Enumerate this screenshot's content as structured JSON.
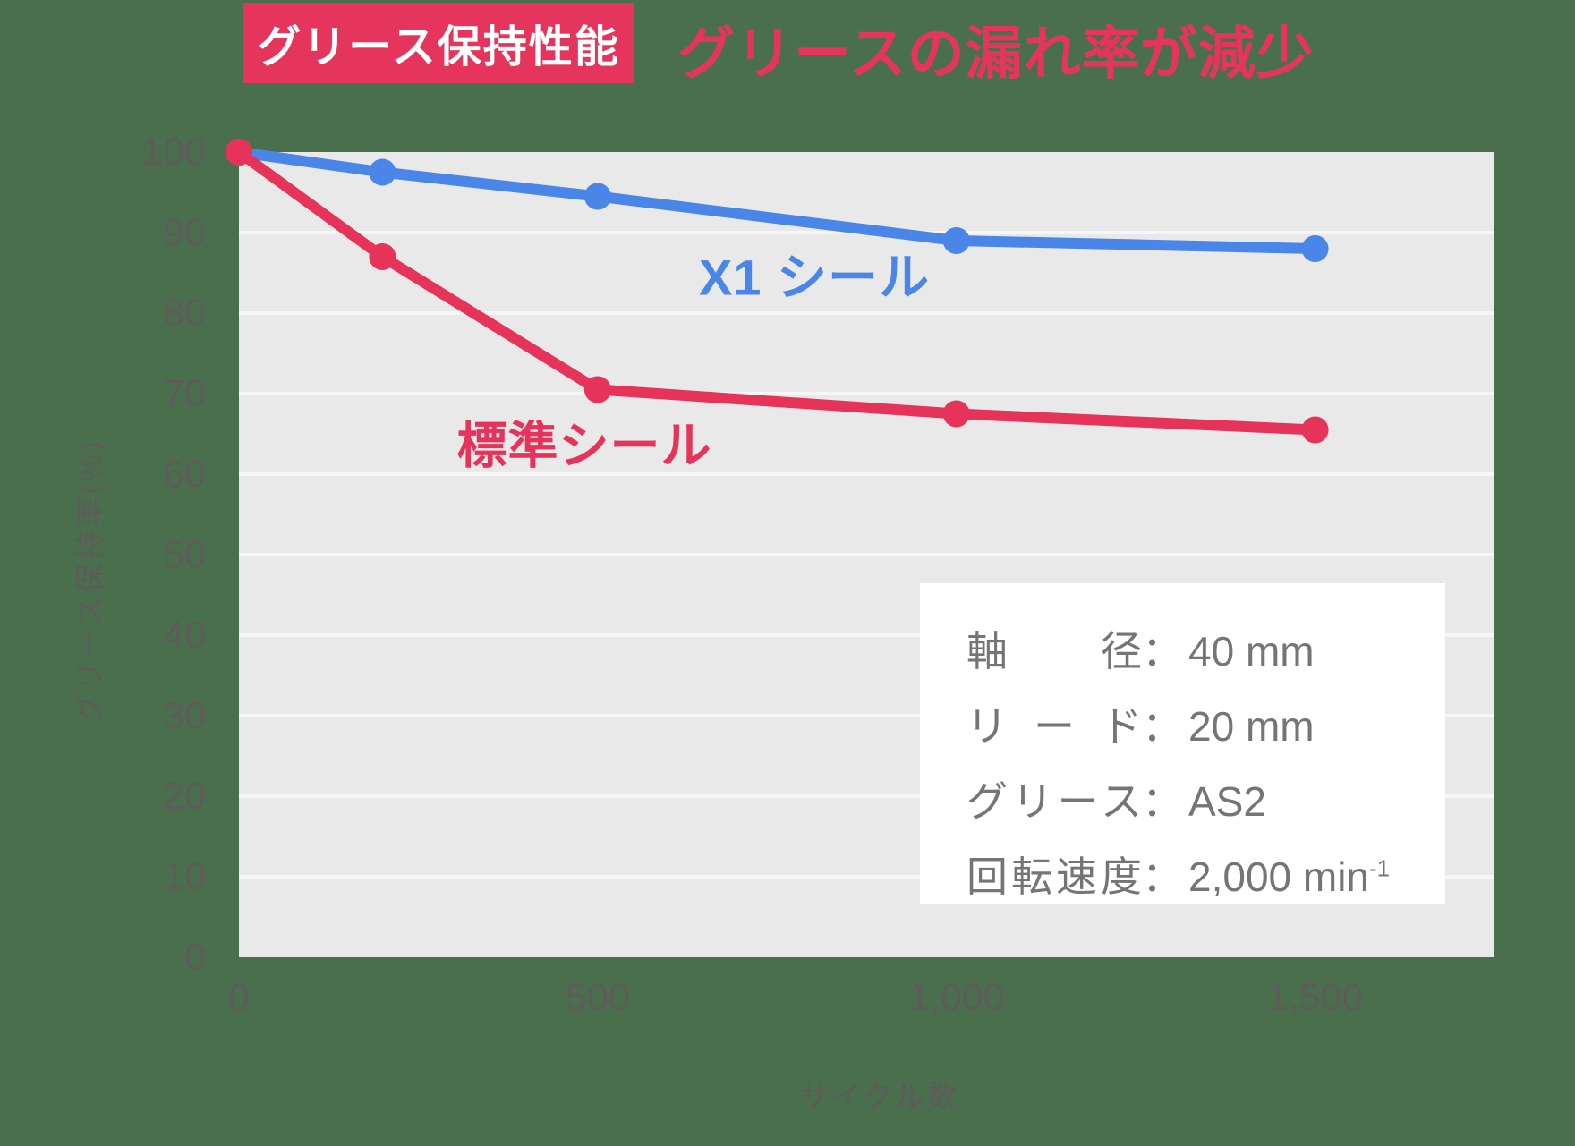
{
  "header": {
    "badge": "グリース保持性能",
    "headline": "グリースの漏れ率が減少"
  },
  "colors": {
    "page_background": "#4a6f4d",
    "plot_background": "#e9e9e9",
    "gridline": "#f6f6f6",
    "axis_text": "#5e5b5b",
    "badge_background": "#e6355c",
    "badge_text": "#ffffff",
    "headline_text": "#e6355c",
    "x1_series": "#4a86e8",
    "standard_series": "#e6335a",
    "spec_text": "#757575",
    "spec_background": "#ffffff"
  },
  "chart_data": {
    "type": "line",
    "title": "グリース保持性能",
    "xlabel": "サイクル数",
    "ylabel": "グリース保持率(%)",
    "xlim": [
      0,
      1750
    ],
    "ylim": [
      0,
      100
    ],
    "grid": "horizontal",
    "x": [
      0,
      200,
      500,
      1000,
      1500
    ],
    "series": [
      {
        "name": "X1 シール",
        "color": "#4a86e8",
        "values": [
          100,
          97.5,
          94.5,
          89,
          88
        ]
      },
      {
        "name": "標準シール",
        "color": "#e6335a",
        "values": [
          100,
          87,
          70.5,
          67.5,
          65.5
        ]
      }
    ],
    "yticks": [
      {
        "value": 0,
        "label": "0"
      },
      {
        "value": 10,
        "label": "10"
      },
      {
        "value": 20,
        "label": "20"
      },
      {
        "value": 30,
        "label": "30"
      },
      {
        "value": 40,
        "label": "40"
      },
      {
        "value": 50,
        "label": "50"
      },
      {
        "value": 60,
        "label": "60"
      },
      {
        "value": 70,
        "label": "70"
      },
      {
        "value": 80,
        "label": "80"
      },
      {
        "value": 90,
        "label": "90"
      },
      {
        "value": 100,
        "label": "100"
      }
    ],
    "xticks": [
      {
        "value": 0,
        "label": "0"
      },
      {
        "value": 500,
        "label": "500"
      },
      {
        "value": 1000,
        "label": "1,000"
      },
      {
        "value": 1500,
        "label": "1,500"
      }
    ]
  },
  "annotation": {
    "separator": "：",
    "rows": [
      {
        "label": "軸径",
        "value": "40 mm"
      },
      {
        "label": "リード",
        "value": "20 mm"
      },
      {
        "label": "グリース",
        "value": "AS2"
      },
      {
        "label": "回転速度",
        "value": "2,000 min",
        "sup": "-1"
      }
    ]
  }
}
